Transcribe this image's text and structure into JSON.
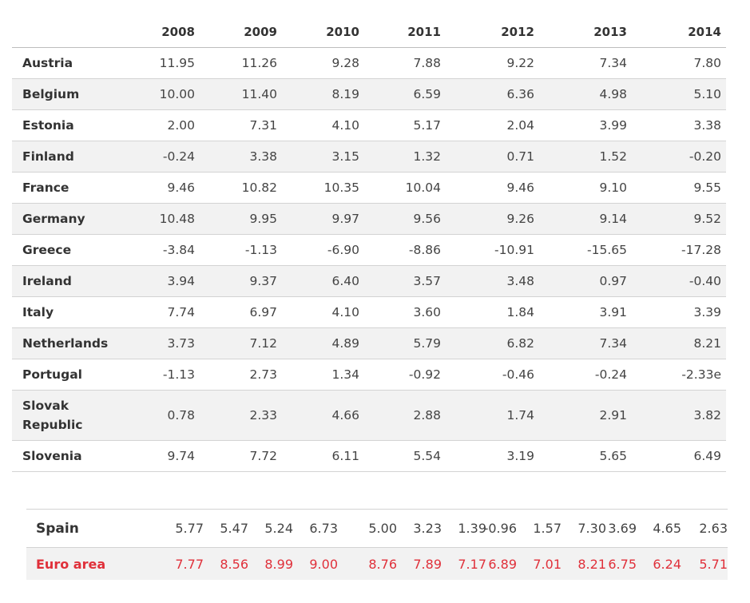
{
  "years": [
    "2008",
    "2009",
    "2010",
    "2011",
    "2012",
    "2013",
    "2014"
  ],
  "rows": [
    {
      "country": "Austria",
      "values": [
        "11.95",
        "11.26",
        "9.28",
        "7.88",
        "9.22",
        "7.34",
        "7.80"
      ]
    },
    {
      "country": "Belgium",
      "values": [
        "10.00",
        "11.40",
        "8.19",
        "6.59",
        "6.36",
        "4.98",
        "5.10"
      ]
    },
    {
      "country": "Estonia",
      "values": [
        "2.00",
        "7.31",
        "4.10",
        "5.17",
        "2.04",
        "3.99",
        "3.38"
      ]
    },
    {
      "country": "Finland",
      "values": [
        "-0.24",
        "3.38",
        "3.15",
        "1.32",
        "0.71",
        "1.52",
        "-0.20"
      ]
    },
    {
      "country": "France",
      "values": [
        "9.46",
        "10.82",
        "10.35",
        "10.04",
        "9.46",
        "9.10",
        "9.55"
      ]
    },
    {
      "country": "Germany",
      "values": [
        "10.48",
        "9.95",
        "9.97",
        "9.56",
        "9.26",
        "9.14",
        "9.52"
      ]
    },
    {
      "country": "Greece",
      "values": [
        "-3.84",
        "-1.13",
        "-6.90",
        "-8.86",
        "-10.91",
        "-15.65",
        "-17.28"
      ]
    },
    {
      "country": "Ireland",
      "values": [
        "3.94",
        "9.37",
        "6.40",
        "3.57",
        "3.48",
        "0.97",
        "-0.40"
      ]
    },
    {
      "country": "Italy",
      "values": [
        "7.74",
        "6.97",
        "4.10",
        "3.60",
        "1.84",
        "3.91",
        "3.39"
      ]
    },
    {
      "country": "Netherlands",
      "values": [
        "3.73",
        "7.12",
        "4.89",
        "5.79",
        "6.82",
        "7.34",
        "8.21"
      ]
    },
    {
      "country": "Portugal",
      "values": [
        "-1.13",
        "2.73",
        "1.34",
        "-0.92",
        "-0.46",
        "-0.24",
        "-2.33e"
      ]
    },
    {
      "country": "Slovak Republic",
      "values": [
        "0.78",
        "2.33",
        "4.66",
        "2.88",
        "1.74",
        "2.91",
        "3.82"
      ]
    },
    {
      "country": "Slovenia",
      "values": [
        "9.74",
        "7.72",
        "6.11",
        "5.54",
        "3.19",
        "5.65",
        "6.49"
      ]
    }
  ],
  "bottom": {
    "spain": {
      "label": "Spain",
      "values": [
        "5.77",
        "5.47",
        "5.24",
        "6.73",
        "5.00",
        "3.23",
        "1.39",
        "-0.96",
        "1.57",
        "7.30",
        "3.69",
        "4.65",
        "2.63"
      ]
    },
    "euro": {
      "label": "Euro area",
      "values": [
        "7.77",
        "8.56",
        "8.99",
        "9.00",
        "8.76",
        "7.89",
        "7.17",
        "6.89",
        "7.01",
        "8.21",
        "6.75",
        "6.24",
        "5.71"
      ]
    }
  },
  "colors": {
    "accent": "#e0303a",
    "stripe": "#f2f2f2",
    "text": "#333333"
  }
}
